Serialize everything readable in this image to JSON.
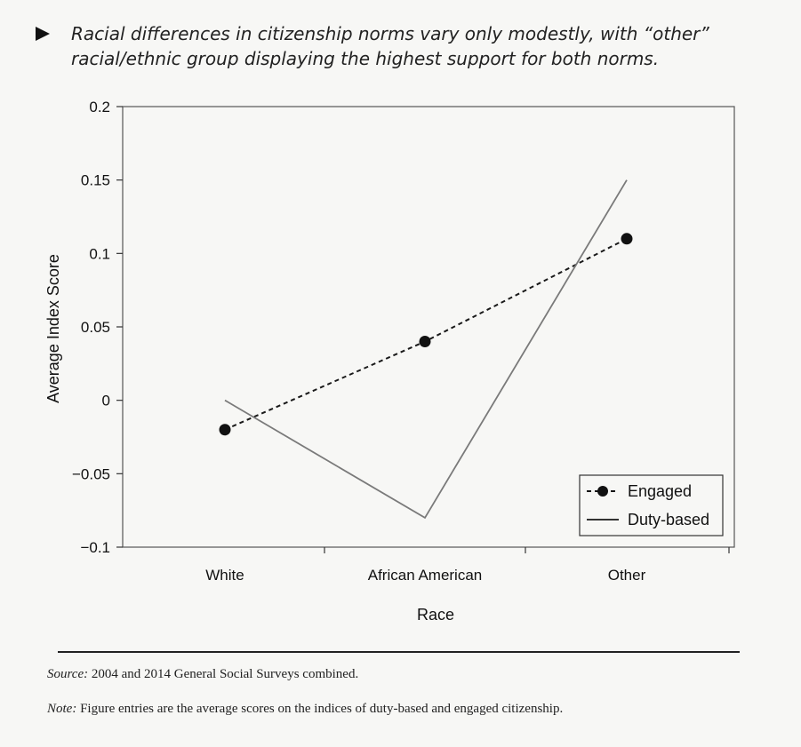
{
  "caption": {
    "text": "Racial differences in citizenship norms vary only modestly, with “other” racial/ethnic group displaying the highest support for both norms."
  },
  "chart_data": {
    "type": "line",
    "categories": [
      "White",
      "African American",
      "Other"
    ],
    "series": [
      {
        "name": "Engaged",
        "values": [
          -0.02,
          0.04,
          0.11
        ],
        "style": "dashed-with-markers",
        "color": "#1a1a1a"
      },
      {
        "name": "Duty-based",
        "values": [
          0.0,
          -0.08,
          0.15
        ],
        "style": "solid",
        "color": "#7a7a7a"
      }
    ],
    "xlabel": "Race",
    "ylabel": "Average Index Score",
    "ylim": [
      -0.1,
      0.2
    ],
    "yticks": [
      {
        "value": 0.2,
        "label": "0.2"
      },
      {
        "value": 0.15,
        "label": "0.15"
      },
      {
        "value": 0.1,
        "label": "0.1"
      },
      {
        "value": 0.05,
        "label": "0.05"
      },
      {
        "value": 0,
        "label": "0"
      },
      {
        "value": -0.05,
        "label": "−0.05"
      },
      {
        "value": -0.1,
        "label": "−0.1"
      }
    ],
    "grid": false,
    "legend_position": "bottom-right"
  },
  "footer": {
    "source_label": "Source:",
    "source_text": "2004 and 2014 General Social Surveys combined.",
    "note_label": "Note:",
    "note_text": "Figure entries are the average scores on the indices of duty-based and engaged citizenship."
  }
}
